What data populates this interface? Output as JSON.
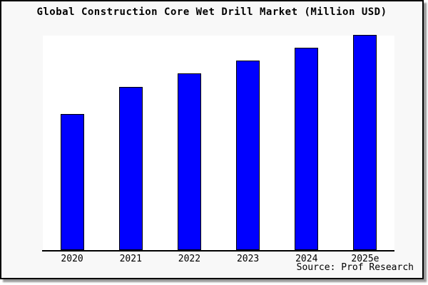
{
  "chart": {
    "title": "Global Construction Core Wet Drill Market (Million USD)",
    "source_note": "Source: Prof Research"
  },
  "chart_data": {
    "type": "bar",
    "title": "Global Construction Core Wet Drill Market (Million USD)",
    "categories": [
      "2020",
      "2021",
      "2022",
      "2023",
      "2024",
      "2025e"
    ],
    "values": [
      63,
      75.5,
      82,
      88,
      94,
      100
    ],
    "value_note": "No numeric y-axis is shown; values are bar heights as percent of the tallest bar (2025e = 100)",
    "xlabel": "",
    "ylabel": "",
    "ylim": [
      0,
      100
    ],
    "grid": false,
    "legend": false,
    "source": "Source: Prof Research",
    "colors": {
      "bar_fill": "#0000ff",
      "bar_border": "#000000",
      "axis": "#000000",
      "frame_background": "#f8f8f8",
      "plot_background": "#ffffff",
      "frame_border": "#000000",
      "shadow": "#999999",
      "text": "#000000"
    }
  }
}
